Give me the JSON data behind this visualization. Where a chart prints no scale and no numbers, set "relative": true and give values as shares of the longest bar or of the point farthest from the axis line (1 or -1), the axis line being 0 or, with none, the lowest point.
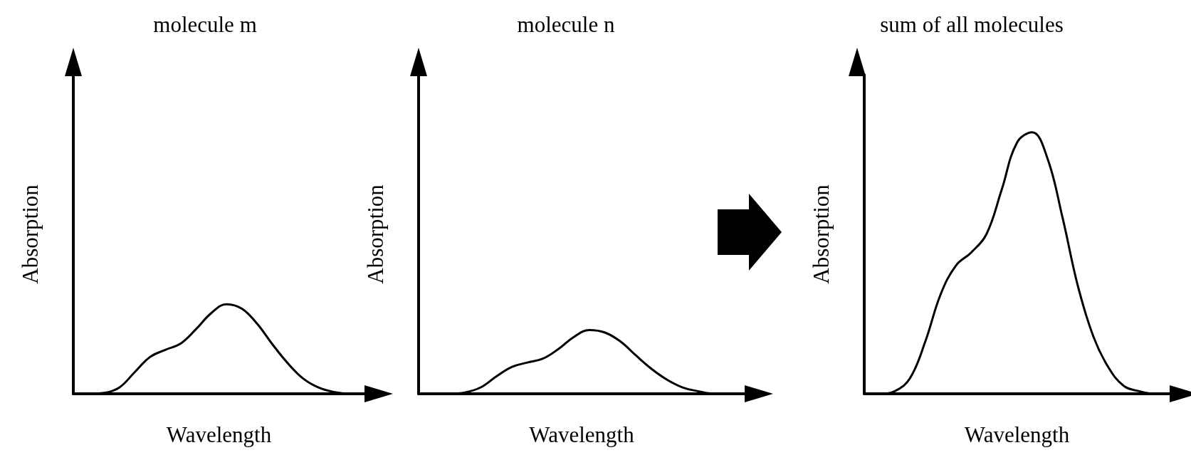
{
  "chart_data": [
    {
      "type": "line",
      "title": "molecule m",
      "xlabel": "Wavelength",
      "ylabel": "Absorption",
      "relative": true,
      "color": "#000000",
      "categories": [
        null,
        null,
        null,
        null,
        null,
        null,
        null,
        null,
        null,
        null,
        null,
        null,
        null,
        null,
        null,
        null,
        null,
        null,
        null,
        null
      ],
      "values": [
        0,
        0,
        0.01,
        0.07,
        0.24,
        0.41,
        0.49,
        0.56,
        0.72,
        0.9,
        1,
        0.95,
        0.78,
        0.55,
        0.34,
        0.17,
        0.07,
        0.02,
        0,
        0
      ]
    },
    {
      "type": "line",
      "title": "molecule n",
      "xlabel": "Wavelength",
      "ylabel": "Absorption",
      "relative": true,
      "color": "#000000",
      "categories": [
        null,
        null,
        null,
        null,
        null,
        null,
        null,
        null,
        null,
        null,
        null,
        null,
        null,
        null,
        null,
        null,
        null,
        null,
        null,
        null,
        null,
        null
      ],
      "values": [
        0,
        0,
        0,
        0.02,
        0.1,
        0.27,
        0.42,
        0.49,
        0.55,
        0.7,
        0.89,
        1,
        0.96,
        0.82,
        0.6,
        0.39,
        0.22,
        0.1,
        0.04,
        0,
        0,
        0
      ]
    },
    {
      "type": "line",
      "title": "sum of all molecules",
      "xlabel": "Wavelength",
      "ylabel": "Absorption",
      "relative": true,
      "color": "#000000",
      "categories": [
        null,
        null,
        null,
        null,
        null,
        null,
        null,
        null,
        null,
        null,
        null,
        null,
        null,
        null,
        null,
        null,
        null,
        null,
        null,
        null,
        null
      ],
      "values": [
        0,
        0,
        0.01,
        0.06,
        0.2,
        0.38,
        0.49,
        0.54,
        0.61,
        0.78,
        0.96,
        1,
        0.9,
        0.67,
        0.41,
        0.22,
        0.1,
        0.03,
        0.01,
        0,
        0
      ]
    }
  ]
}
